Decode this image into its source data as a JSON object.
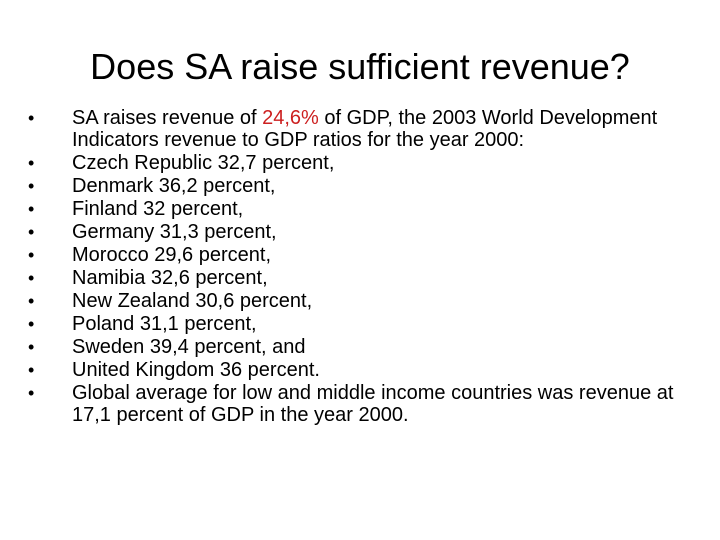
{
  "slide": {
    "title": "Does SA raise sufficient revenue?",
    "bullet_glyph": "•",
    "highlight_color": "#cc1f1f",
    "first_bullet": {
      "prefix": "SA raises revenue of ",
      "highlight": "24,6%",
      "suffix": " of GDP, the 2003 World Development Indicators revenue to GDP ratios for the year 2000:"
    },
    "items": [
      "Czech Republic 32,7 percent,",
      "Denmark 36,2 percent,",
      "Finland 32 percent,",
      "Germany 31,3 percent,",
      "Morocco 29,6 percent,",
      "Namibia 32,6 percent,",
      "New Zealand 30,6 percent,",
      "Poland 31,1 percent,",
      "Sweden 39,4 percent, and",
      "United Kingdom 36 percent.",
      "Global average for low and middle income countries was revenue at 17,1 percent of GDP in the year 2000."
    ]
  }
}
